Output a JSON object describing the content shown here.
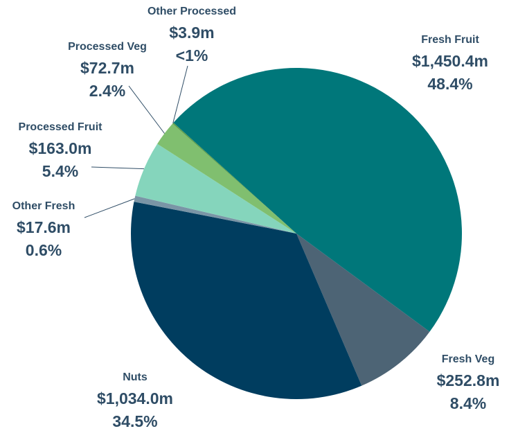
{
  "chart_data": {
    "type": "pie",
    "categories": [
      "Fresh Fruit",
      "Fresh Veg",
      "Nuts",
      "Other Fresh",
      "Processed Fruit",
      "Processed Veg",
      "Other Processed"
    ],
    "values": [
      1450.4,
      252.8,
      1034.0,
      17.6,
      163.0,
      72.7,
      3.9
    ],
    "value_labels": [
      "$1,450.4m",
      "$252.8m",
      "$1,034.0m",
      "$17.6m",
      "$163.0m",
      "$72.7m",
      "$3.9m"
    ],
    "percent_labels": [
      "48.4%",
      "8.4%",
      "34.5%",
      "0.6%",
      "5.4%",
      "2.4%",
      "<1%"
    ],
    "colors": [
      "#00777a",
      "#4d6475",
      "#003d5f",
      "#7a95a6",
      "#85d5bc",
      "#80bf6f",
      "#5e9f4d"
    ]
  }
}
